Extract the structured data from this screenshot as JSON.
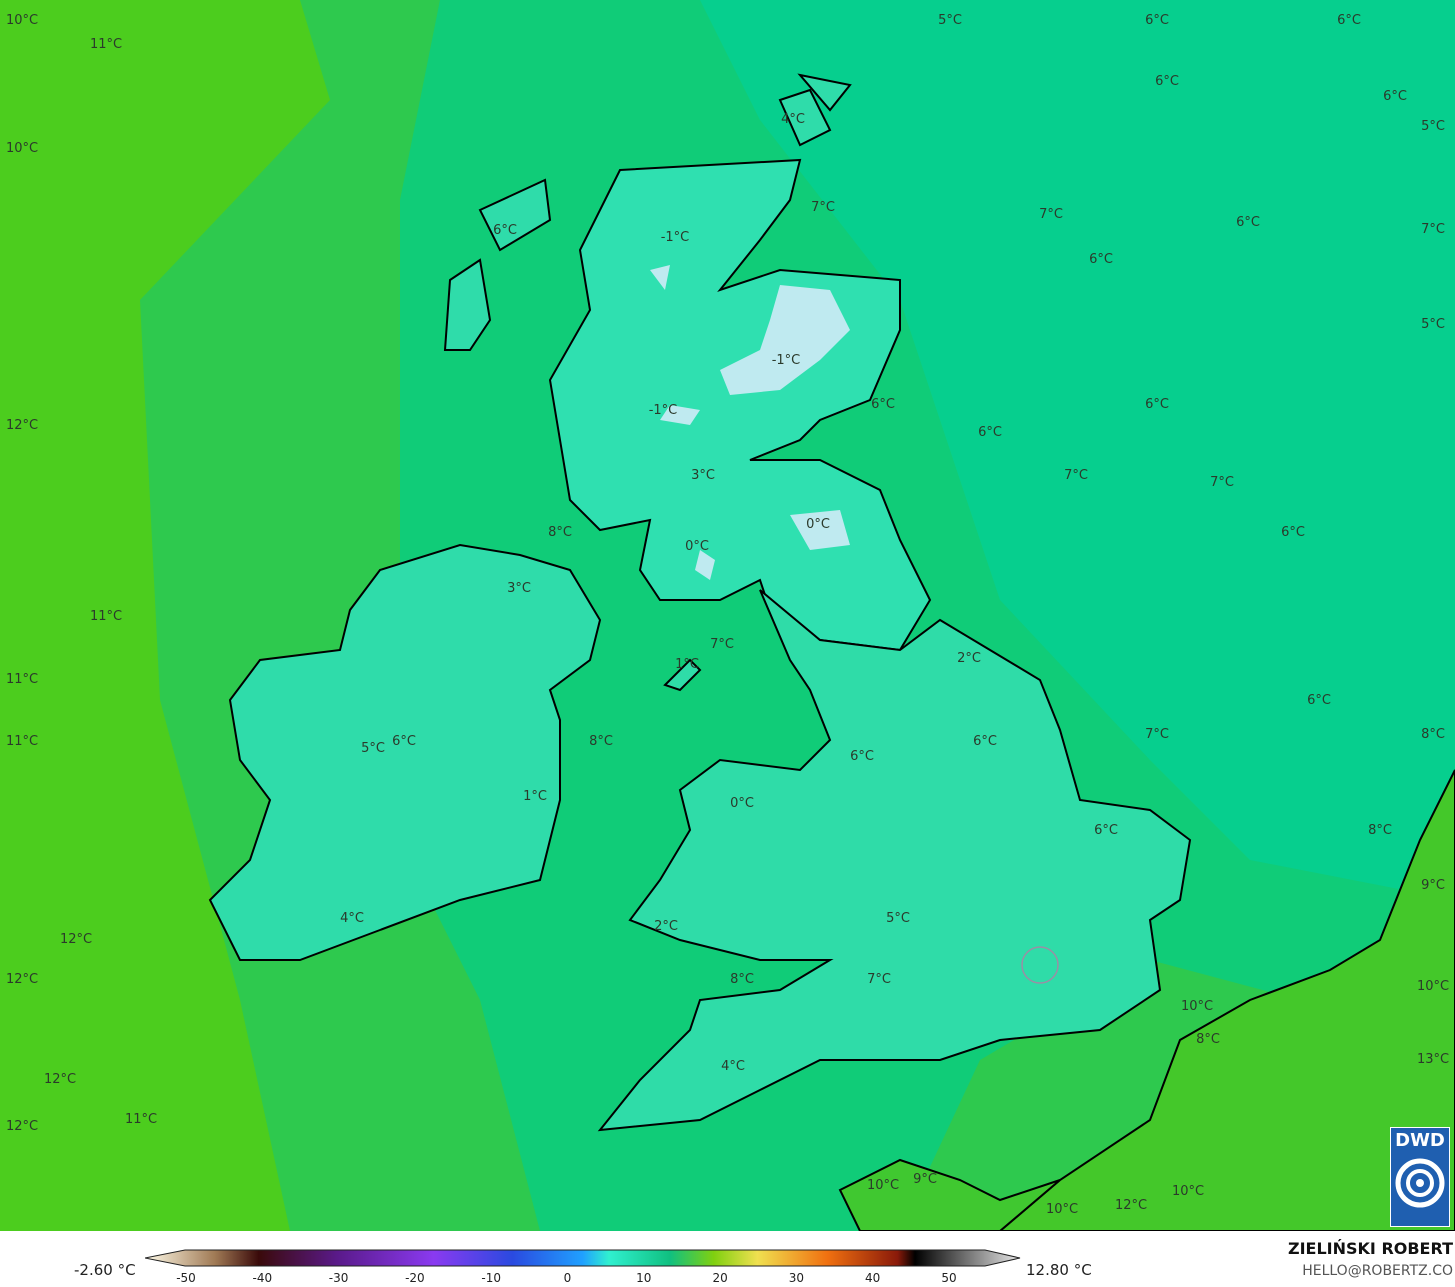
{
  "map": {
    "variable": "temperature",
    "unit": "°C",
    "labels": [
      "10°C",
      "11°C",
      "5°C",
      "6°C",
      "6°C",
      "6°C",
      "6°C",
      "4°C",
      "5°C",
      "10°C",
      "7°C",
      "7°C",
      "6°C",
      "7°C",
      "6°C",
      "-1°C",
      "6°C",
      "5°C",
      "-1°C",
      "-1°C",
      "6°C",
      "6°C",
      "12°C",
      "6°C",
      "3°C",
      "7°C",
      "7°C",
      "0°C",
      "8°C",
      "6°C",
      "0°C",
      "3°C",
      "11°C",
      "7°C",
      "2°C",
      "1°C",
      "11°C",
      "6°C",
      "11°C",
      "5°C",
      "6°C",
      "8°C",
      "6°C",
      "6°C",
      "7°C",
      "8°C",
      "1°C",
      "0°C",
      "6°C",
      "8°C",
      "9°C",
      "5°C",
      "4°C",
      "2°C",
      "12°C",
      "12°C",
      "8°C",
      "7°C",
      "10°C",
      "10°C",
      "8°C",
      "13°C",
      "4°C",
      "12°C",
      "11°C",
      "12°C",
      "9°C",
      "10°C",
      "10°C",
      "12°C",
      "10°C"
    ],
    "colors": {
      "land_cold": "#bfeaf0",
      "land": "#2fe0b0",
      "sea": "#0ccf8a",
      "open_sea": "#00c98a",
      "warm_sea": "#2cc54a",
      "atlantic": "#4ccd1e",
      "continent": "#3ec62a"
    }
  },
  "legend": {
    "min": "-2.60 °C",
    "max": "12.80 °C",
    "ticks": [
      "-50",
      "-40",
      "-30",
      "-20",
      "-10",
      "0",
      "10",
      "20",
      "30",
      "40",
      "50"
    ]
  },
  "credit": {
    "author": "ZIELIŃSKI ROBERT",
    "email": "HELLO@ROBERTZ.CO"
  },
  "logo": {
    "text": "DWD"
  }
}
